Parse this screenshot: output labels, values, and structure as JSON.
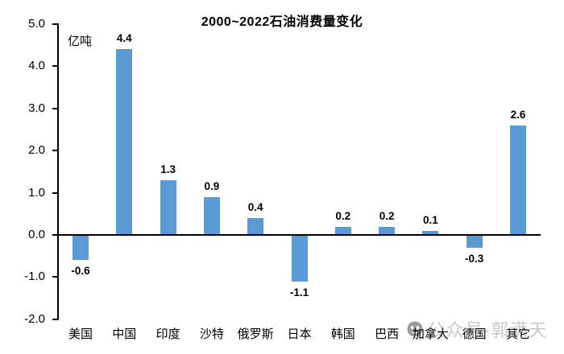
{
  "title": "2000~2022石油消费量变化",
  "unit_label": "亿吨",
  "watermark": {
    "text": "公众号·郭满天",
    "icon": "wechat-official-account-icon"
  },
  "colors": {
    "bar": "#5B9BD5",
    "axis": "#000000",
    "text": "#000000",
    "watermark_text": "#C9C9C9",
    "watermark_icon": "#9B9B9B"
  },
  "chart_data": {
    "type": "bar",
    "title": "2000~2022石油消费量变化",
    "xlabel": "",
    "ylabel": "亿吨",
    "categories": [
      "美国",
      "中国",
      "印度",
      "沙特",
      "俄罗斯",
      "日本",
      "韩国",
      "巴西",
      "加拿大",
      "德国",
      "其它"
    ],
    "values": [
      -0.6,
      4.4,
      1.3,
      0.9,
      0.4,
      -1.1,
      0.2,
      0.2,
      0.1,
      -0.3,
      2.6
    ],
    "data_labels": [
      "-0.6",
      "4.4",
      "1.3",
      "0.9",
      "0.4",
      "-1.1",
      "0.2",
      "0.2",
      "0.1",
      "-0.3",
      "2.6"
    ],
    "ylim": [
      -2.0,
      5.0
    ],
    "ytick_values": [
      5.0,
      4.0,
      3.0,
      2.0,
      1.0,
      0.0,
      -1.0,
      -2.0
    ],
    "yticks": [
      "5.0",
      "4.0",
      "3.0",
      "2.0",
      "1.0",
      "0.0",
      "-1.0",
      "-2.0"
    ],
    "grid": false,
    "legend": null,
    "bar_color": "#5B9BD5"
  }
}
